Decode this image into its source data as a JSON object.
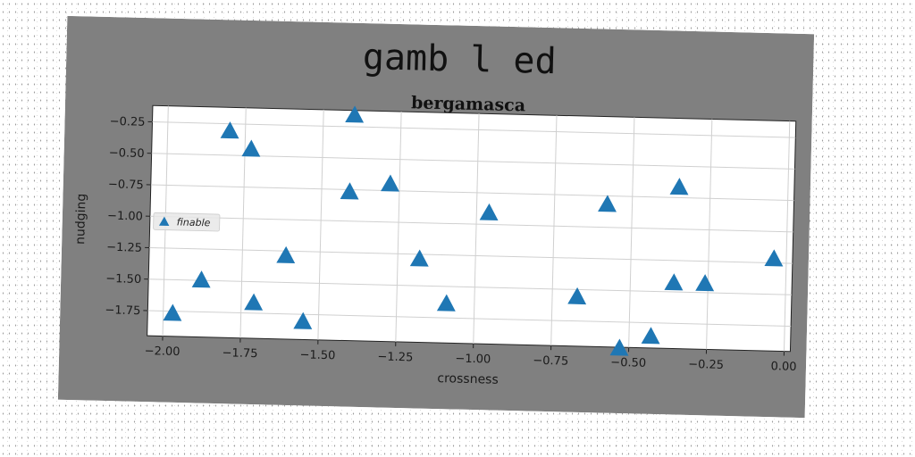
{
  "suptitle": "gamb l ed",
  "chart_data": {
    "type": "scatter",
    "title": "bergamasca",
    "xlabel": "crossness",
    "ylabel": "nudging",
    "xlim": [
      -2.05,
      0.02
    ],
    "ylim": [
      -1.95,
      -0.12
    ],
    "xticks": [
      -2.0,
      -1.75,
      -1.5,
      -1.25,
      -1.0,
      -0.75,
      -0.5,
      -0.25,
      0.0
    ],
    "xtick_labels": [
      "−2.00",
      "−1.75",
      "−1.50",
      "−1.25",
      "−1.00",
      "−0.75",
      "−0.50",
      "−0.25",
      "0.00"
    ],
    "yticks": [
      -0.25,
      -0.5,
      -0.75,
      -1.0,
      -1.25,
      -1.5,
      -1.75
    ],
    "ytick_labels": [
      "−0.25",
      "−0.50",
      "−0.75",
      "−1.00",
      "−1.25",
      "−1.50",
      "−1.75"
    ],
    "grid": true,
    "legend_position": "center-left",
    "series": [
      {
        "name": "finable",
        "marker": "triangle-up",
        "color": "#1f77b4",
        "x": [
          -1.4,
          -1.8,
          -1.73,
          -1.41,
          -1.28,
          -0.96,
          -0.58,
          -0.35,
          -0.04,
          -1.61,
          -1.18,
          -1.88,
          -1.71,
          -1.97,
          -1.55,
          -1.09,
          -0.67,
          -0.36,
          -0.26,
          -0.53,
          -0.43
        ],
        "y": [
          -0.16,
          -0.31,
          -0.45,
          -0.77,
          -0.7,
          -0.91,
          -0.82,
          -0.67,
          -1.22,
          -1.29,
          -1.29,
          -1.5,
          -1.67,
          -1.77,
          -1.81,
          -1.64,
          -1.56,
          -1.43,
          -1.43,
          -1.96,
          -1.86
        ]
      }
    ]
  }
}
